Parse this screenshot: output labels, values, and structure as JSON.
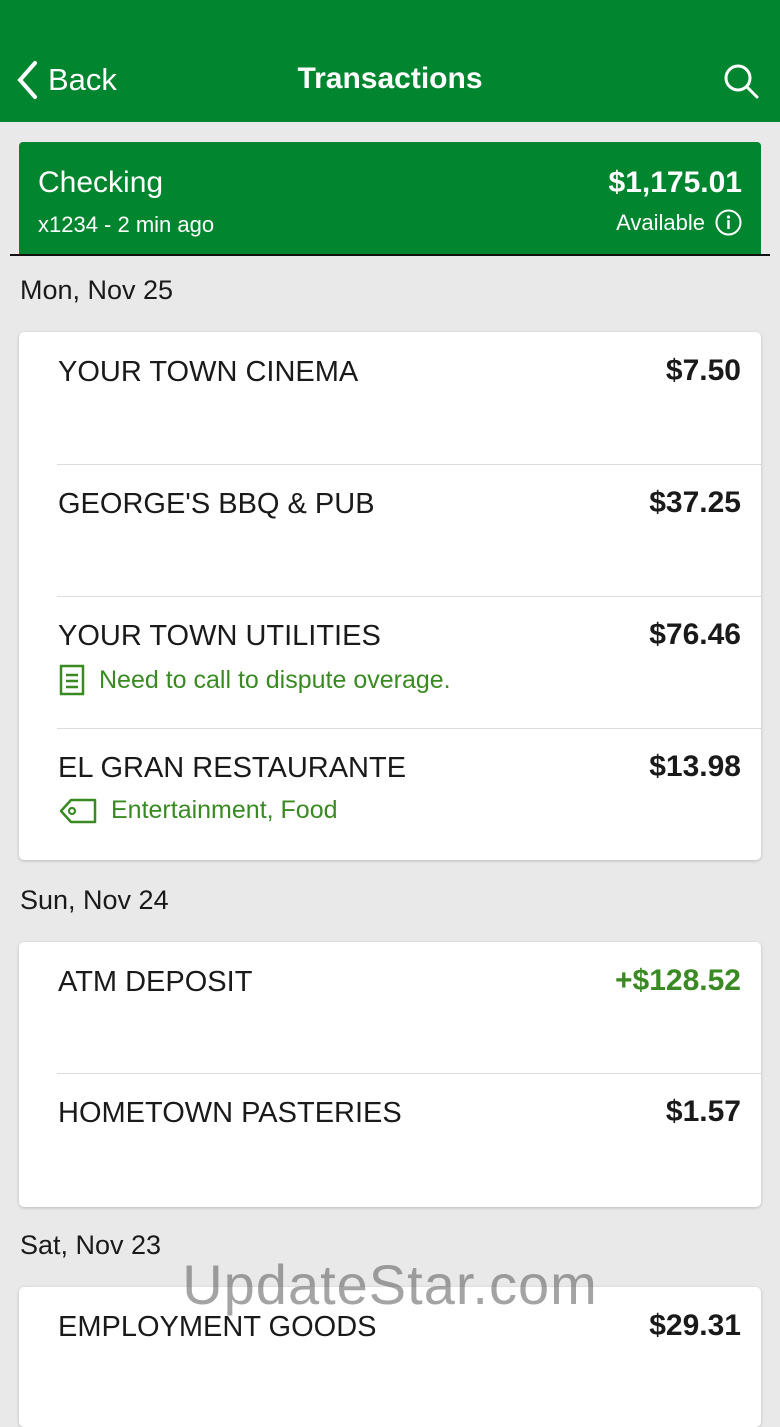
{
  "header": {
    "back_label": "Back",
    "title": "Transactions"
  },
  "account": {
    "name": "Checking",
    "subtitle": "x1234 - 2 min ago",
    "balance": "$1,175.01",
    "balance_label": "Available"
  },
  "groups": [
    {
      "date": "Mon, Nov 25",
      "transactions": [
        {
          "name": "YOUR TOWN CINEMA",
          "amount": "$7.50"
        },
        {
          "name": "GEORGE'S BBQ & PUB",
          "amount": "$37.25"
        },
        {
          "name": "YOUR TOWN UTILITIES",
          "amount": "$76.46",
          "note": "Need to call to dispute overage."
        },
        {
          "name": "EL GRAN RESTAURANTE",
          "amount": "$13.98",
          "tags": "Entertainment, Food"
        }
      ]
    },
    {
      "date": "Sun, Nov 24",
      "transactions": [
        {
          "name": "ATM DEPOSIT",
          "amount": "+$128.52"
        },
        {
          "name": "HOMETOWN PASTERIES",
          "amount": "$1.57"
        }
      ]
    },
    {
      "date": "Sat, Nov 23",
      "transactions": [
        {
          "name": "EMPLOYMENT GOODS",
          "amount": "$29.31"
        }
      ]
    }
  ],
  "watermark": "UpdateStar.com",
  "colors": {
    "brand": "#01852f",
    "positive": "#3a8a23"
  }
}
